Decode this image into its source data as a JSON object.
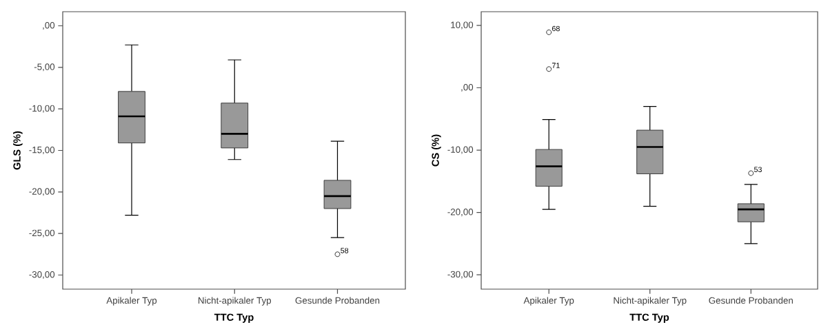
{
  "chart_data": [
    {
      "type": "box",
      "xlabel": "TTC Typ",
      "ylabel": "GLS (%)",
      "categories": [
        "Apikaler Typ",
        "Nicht-apikaler Typ",
        "Gesunde Probanden"
      ],
      "ylim": [
        -31.7,
        1.7
      ],
      "yticks": [
        {
          "value": 0,
          "label": ",00"
        },
        {
          "value": -5,
          "label": "-5,00"
        },
        {
          "value": -10,
          "label": "-10,00"
        },
        {
          "value": -15,
          "label": "-15,00"
        },
        {
          "value": -20,
          "label": "-20,00"
        },
        {
          "value": -25,
          "label": "-25,00"
        },
        {
          "value": -30,
          "label": "-30,00"
        }
      ],
      "series": [
        {
          "color": "#999999",
          "boxes": [
            {
              "low": -22.8,
              "q1": -14.1,
              "median": -10.9,
              "q3": -7.9,
              "high": -2.3
            },
            {
              "low": -16.1,
              "q1": -14.7,
              "median": -13.0,
              "q3": -9.3,
              "high": -4.1
            },
            {
              "low": -25.5,
              "q1": -22.0,
              "median": -20.5,
              "q3": -18.6,
              "high": -13.9,
              "outliers": [
                -27.5
              ]
            }
          ]
        }
      ],
      "annotations": [
        "58"
      ]
    },
    {
      "type": "box",
      "xlabel": "TTC Typ",
      "ylabel": "CS (%)",
      "categories": [
        "Apikaler Typ",
        "Nicht-apikaler Typ",
        "Gesunde Probanden"
      ],
      "ylim": [
        -32.3,
        12.2
      ],
      "yticks": [
        {
          "value": 10,
          "label": "10,00"
        },
        {
          "value": 0,
          "label": ",00"
        },
        {
          "value": -10,
          "label": "-10,00"
        },
        {
          "value": -20,
          "label": "-20,00"
        },
        {
          "value": -30,
          "label": "-30,00"
        }
      ],
      "series": [
        {
          "color": "#999999",
          "boxes": [
            {
              "low": -19.5,
              "q1": -15.8,
              "median": -12.6,
              "q3": -9.9,
              "high": -5.1,
              "outliers": [
                8.9,
                3.0
              ]
            },
            {
              "low": -19.0,
              "q1": -13.8,
              "median": -9.5,
              "q3": -6.8,
              "high": -3.0
            },
            {
              "low": -25.0,
              "q1": -21.5,
              "median": -19.5,
              "q3": -18.6,
              "high": -15.5,
              "outliers": [
                -13.7
              ]
            }
          ]
        }
      ],
      "annotations": [
        "68",
        "71",
        "53"
      ]
    }
  ]
}
